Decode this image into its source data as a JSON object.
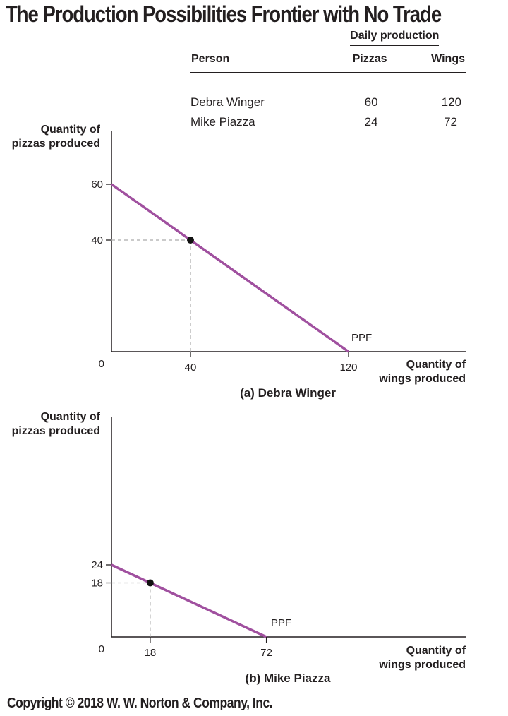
{
  "title": "The Production Possibilities Frontier with No Trade",
  "copyright": "Copyright © 2018 W. W. Norton & Company, Inc.",
  "table": {
    "group_header": "Daily production",
    "headers": [
      "Person",
      "Pizzas",
      "Wings"
    ],
    "rows": [
      [
        "Debra Winger",
        "60",
        "120"
      ],
      [
        "Mike Piazza",
        "24",
        "72"
      ]
    ]
  },
  "colors": {
    "ppf": "#a0509f",
    "guide": "#aaaaaa",
    "axis": "#231f20",
    "point": "#111111"
  },
  "chart_data": [
    {
      "type": "line",
      "caption": "(a) Debra Winger",
      "ylabel": "Quantity of\npizzas produced",
      "xlabel": "Quantity of\nwings produced",
      "origin_label": "0",
      "line_label": "PPF",
      "x": [
        0,
        120
      ],
      "y": [
        60,
        0
      ],
      "point": {
        "x": 40,
        "y": 40
      },
      "xticks": [
        40,
        120
      ],
      "yticks": [
        40,
        60
      ],
      "xlim": [
        0,
        180
      ],
      "ylim": [
        0,
        60
      ],
      "grid": false
    },
    {
      "type": "line",
      "caption": "(b) Mike Piazza",
      "ylabel": "Quantity of\npizzas produced",
      "xlabel": "Quantity of\nwings produced",
      "origin_label": "0",
      "line_label": "PPF",
      "x": [
        0,
        72
      ],
      "y": [
        24,
        0
      ],
      "point": {
        "x": 18,
        "y": 18
      },
      "xticks": [
        18,
        72
      ],
      "yticks": [
        18,
        24
      ],
      "xlim": [
        0,
        160
      ],
      "ylim": [
        0,
        24
      ],
      "grid": false
    }
  ]
}
